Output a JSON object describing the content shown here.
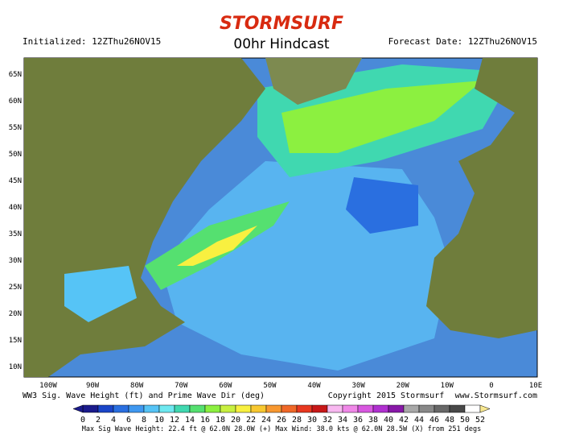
{
  "header": {
    "logo": "STORMSURF",
    "title": "00hr Hindcast",
    "initialized": "Initialized: 12ZThu26NOV15",
    "forecast_date": "Forecast Date: 12ZThu26NOV15"
  },
  "map": {
    "lat_labels": [
      "65N",
      "60N",
      "55N",
      "50N",
      "45N",
      "40N",
      "35N",
      "30N",
      "25N",
      "20N",
      "15N",
      "10N"
    ],
    "lon_labels": [
      "100W",
      "90W",
      "80W",
      "70W",
      "60W",
      "50W",
      "40W",
      "30W",
      "20W",
      "10W",
      "0",
      "10E"
    ]
  },
  "footer": {
    "left": "WW3 Sig. Wave Height (ft) and Prime Wave Dir (deg)",
    "center": "Copyright 2015 Stormsurf",
    "right": "www.Stormsurf.com"
  },
  "colorbar": {
    "ticks": [
      0,
      2,
      4,
      6,
      8,
      10,
      12,
      14,
      16,
      18,
      20,
      22,
      24,
      26,
      28,
      30,
      32,
      34,
      36,
      38,
      40,
      42,
      44,
      46,
      48,
      50,
      52
    ],
    "colors": [
      "#1b1b8c",
      "#1a45c8",
      "#2a6fe0",
      "#3f98f0",
      "#56c4f6",
      "#6ee8f0",
      "#40d8b0",
      "#55e070",
      "#8cf040",
      "#c8f040",
      "#f8f040",
      "#f8c830",
      "#f89830",
      "#f06828",
      "#e83820",
      "#c81818",
      "#f8b8f0",
      "#f088e8",
      "#d858e0",
      "#b030d0",
      "#8818a8",
      "#a8a8a8",
      "#888888",
      "#686868",
      "#484848",
      "#ffffff",
      "#f8e890"
    ]
  },
  "stats": "Max Sig Wave Height: 22.4 ft @ 62.0N 28.0W (+)  Max Wind: 38.0 kts @ 62.0N 28.5W (X) from 251 degs"
}
